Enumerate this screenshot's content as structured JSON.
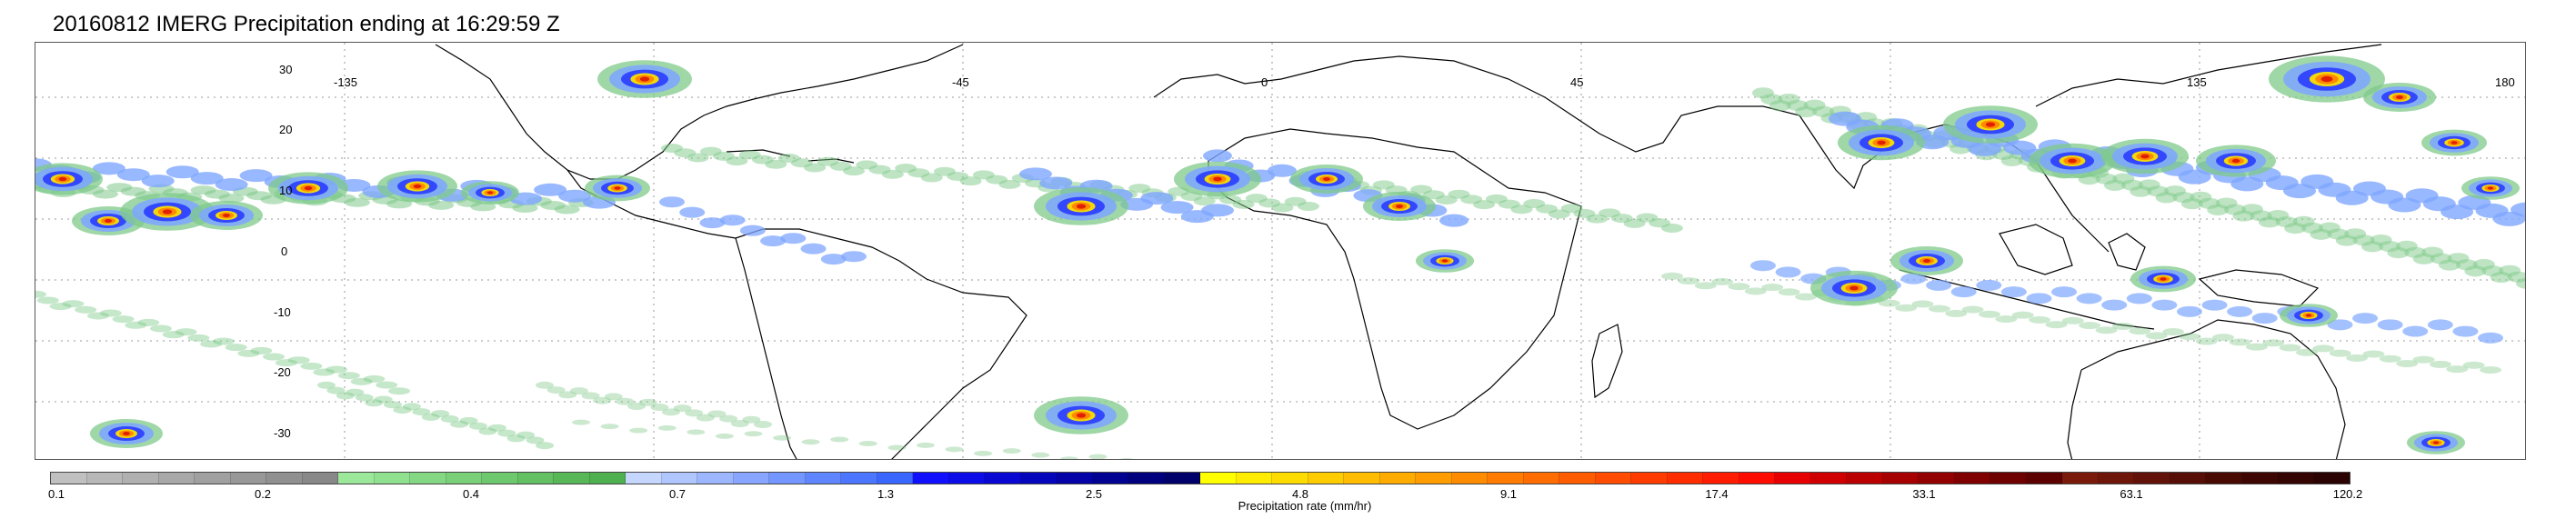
{
  "title": "20160812 IMERG Precipitation ending at 16:29:59 Z",
  "map": {
    "lat_labels": [
      "30",
      "20",
      "10",
      "0",
      "-10",
      "-20",
      "-30"
    ],
    "lon_labels": [
      "-135",
      "-45",
      "0",
      "45",
      "135",
      "180"
    ],
    "grid": "dotted",
    "land_outline_color": "#000000"
  },
  "colorbar": {
    "title": "Precipitation rate (mm/hr)",
    "tick_labels": [
      "0.1",
      "0.2",
      "0.4",
      "0.7",
      "1.3",
      "2.5",
      "4.8",
      "9.1",
      "17.4",
      "33.1",
      "63.1",
      "120.2"
    ],
    "colors": [
      "#c0c0c0",
      "#b8b8b8",
      "#b0b0b0",
      "#a8a8a8",
      "#a0a0a0",
      "#989898",
      "#909090",
      "#888888",
      "#9be89b",
      "#8fe08f",
      "#84d884",
      "#79d079",
      "#6ec86e",
      "#63c063",
      "#58b858",
      "#4eb04e",
      "#c5d6ff",
      "#b0c6ff",
      "#9cb6ff",
      "#88a6ff",
      "#7496ff",
      "#6086ff",
      "#4c76ff",
      "#3866ff",
      "#1010ff",
      "#0c0ce8",
      "#0808d2",
      "#0505bc",
      "#0303a8",
      "#010192",
      "#00007e",
      "#00006a",
      "#ffff00",
      "#ffec00",
      "#ffdc00",
      "#ffcc00",
      "#ffbc00",
      "#ffac00",
      "#ff9c00",
      "#ff8c00",
      "#ff7c00",
      "#ff6c00",
      "#ff5c00",
      "#ff4c00",
      "#ff3c00",
      "#ff2c00",
      "#ff1c00",
      "#ff0c00",
      "#e60000",
      "#d00000",
      "#bb0000",
      "#a60000",
      "#920000",
      "#800000",
      "#6e0000",
      "#5c0000",
      "#7a1a0a",
      "#6e160a",
      "#621208",
      "#560e06",
      "#4a0a04",
      "#3e0603",
      "#340402",
      "#2a0201"
    ]
  },
  "precip_colors": {
    "light_green": "#7fc98a",
    "light_blue": "#7ea6ff",
    "blue": "#2a3cff",
    "dark_blue": "#0a0a9e",
    "yellow": "#ffe000",
    "orange": "#ff8a00",
    "red": "#e02000",
    "dark_red": "#8a0000"
  }
}
